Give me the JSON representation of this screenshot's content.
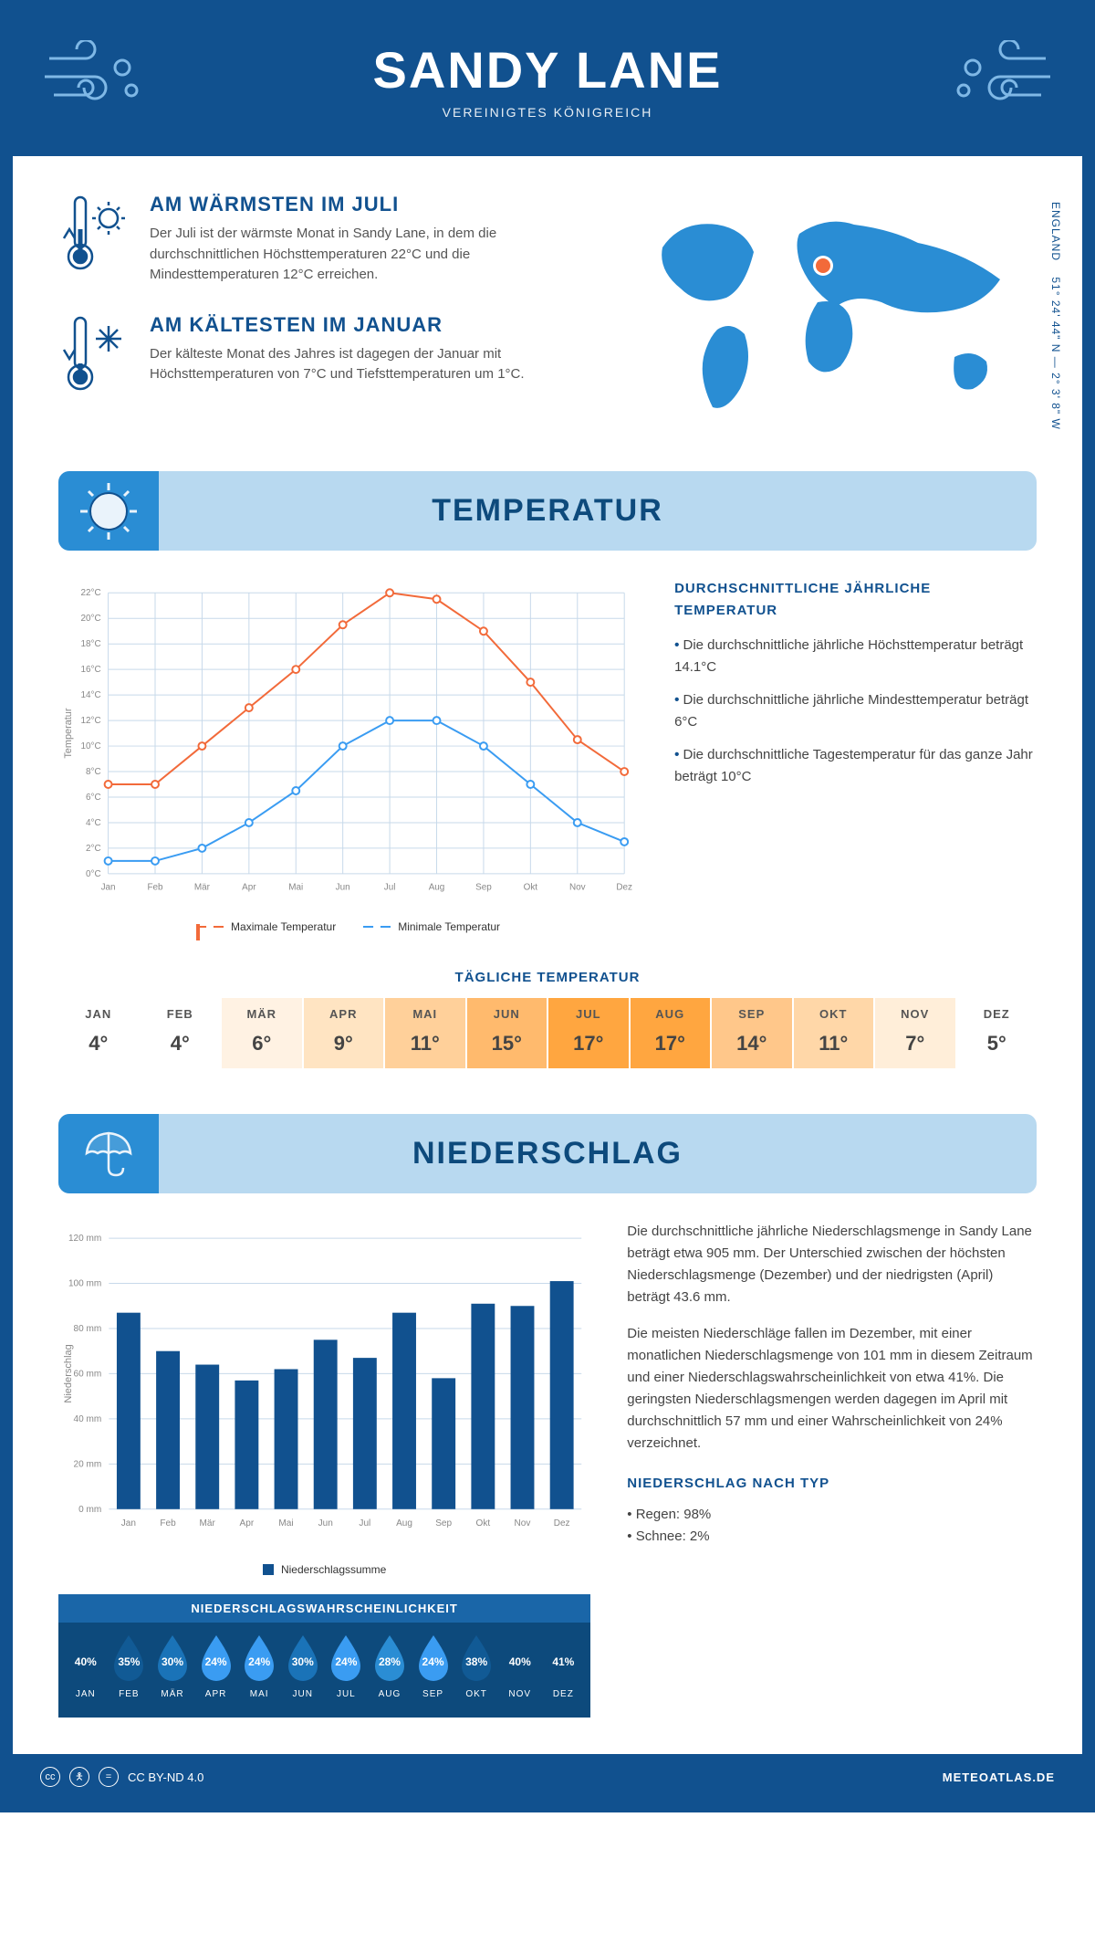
{
  "header": {
    "title": "SANDY LANE",
    "subtitle": "VEREINIGTES KÖNIGREICH"
  },
  "coords": {
    "text": "51° 24' 44\" N — 2° 3' 8\" W",
    "region": "ENGLAND"
  },
  "facts": {
    "warm": {
      "title": "AM WÄRMSTEN IM JULI",
      "body": "Der Juli ist der wärmste Monat in Sandy Lane, in dem die durchschnittlichen Höchsttemperaturen 22°C und die Mindesttemperaturen 12°C erreichen."
    },
    "cold": {
      "title": "AM KÄLTESTEN IM JANUAR",
      "body": "Der kälteste Monat des Jahres ist dagegen der Januar mit Höchsttemperaturen von 7°C und Tiefsttemperaturen um 1°C."
    }
  },
  "sections": {
    "temp": "TEMPERATUR",
    "precip": "NIEDERSCHLAG",
    "daily": "TÄGLICHE TEMPERATUR"
  },
  "temp_side": {
    "title": "DURCHSCHNITTLICHE JÄHRLICHE TEMPERATUR",
    "items": [
      "Die durchschnittliche jährliche Höchsttemperatur beträgt 14.1°C",
      "Die durchschnittliche jährliche Mindesttemperatur beträgt 6°C",
      "Die durchschnittliche Tagestemperatur für das ganze Jahr beträgt 10°C"
    ]
  },
  "temp_chart": {
    "type": "line",
    "months": [
      "Jan",
      "Feb",
      "Mär",
      "Apr",
      "Mai",
      "Jun",
      "Jul",
      "Aug",
      "Sep",
      "Okt",
      "Nov",
      "Dez"
    ],
    "max": [
      7,
      7,
      10,
      13,
      16,
      19.5,
      22,
      21.5,
      19,
      15,
      10.5,
      8
    ],
    "min": [
      1,
      1,
      2,
      4,
      6.5,
      10,
      12,
      12,
      10,
      7,
      4,
      2.5
    ],
    "max_color": "#f26a3a",
    "min_color": "#3a9cf2",
    "grid_color": "#c7d9ea",
    "ylim": [
      0,
      22
    ],
    "ytick_step": 2,
    "ylabel": "Temperatur",
    "legend": {
      "max": "Maximale Temperatur",
      "min": "Minimale Temperatur"
    }
  },
  "daily_temps": {
    "months": [
      "JAN",
      "FEB",
      "MÄR",
      "APR",
      "MAI",
      "JUN",
      "JUL",
      "AUG",
      "SEP",
      "OKT",
      "NOV",
      "DEZ"
    ],
    "values": [
      "4°",
      "4°",
      "6°",
      "9°",
      "11°",
      "15°",
      "17°",
      "17°",
      "14°",
      "11°",
      "7°",
      "5°"
    ],
    "colors": [
      "#ffffff",
      "#ffffff",
      "#fff2e3",
      "#ffe4c2",
      "#ffd09a",
      "#ffba6d",
      "#ffa640",
      "#ffa640",
      "#ffc78a",
      "#ffd7a8",
      "#ffeed9",
      "#ffffff"
    ]
  },
  "precip_chart": {
    "type": "bar",
    "months": [
      "Jan",
      "Feb",
      "Mär",
      "Apr",
      "Mai",
      "Jun",
      "Jul",
      "Aug",
      "Sep",
      "Okt",
      "Nov",
      "Dez"
    ],
    "values": [
      87,
      70,
      64,
      57,
      62,
      75,
      67,
      87,
      58,
      91,
      90,
      101
    ],
    "bar_color": "#11518f",
    "grid_color": "#c7d9ea",
    "ylim": [
      0,
      120
    ],
    "ytick_step": 20,
    "ylabel": "Niederschlag",
    "legend": "Niederschlagssumme"
  },
  "precip_text": {
    "p1": "Die durchschnittliche jährliche Niederschlagsmenge in Sandy Lane beträgt etwa 905 mm. Der Unterschied zwischen der höchsten Niederschlagsmenge (Dezember) und der niedrigsten (April) beträgt 43.6 mm.",
    "p2": "Die meisten Niederschläge fallen im Dezember, mit einer monatlichen Niederschlagsmenge von 101 mm in diesem Zeitraum und einer Niederschlagswahrscheinlichkeit von etwa 41%. Die geringsten Niederschlagsmengen werden dagegen im April mit durchschnittlich 57 mm und einer Wahrscheinlichkeit von 24% verzeichnet.",
    "type_title": "NIEDERSCHLAG NACH TYP",
    "types": [
      "Regen: 98%",
      "Schnee: 2%"
    ]
  },
  "prob": {
    "title": "NIEDERSCHLAGSWAHRSCHEINLICHKEIT",
    "months": [
      "JAN",
      "FEB",
      "MÄR",
      "APR",
      "MAI",
      "JUN",
      "JUL",
      "AUG",
      "SEP",
      "OKT",
      "NOV",
      "DEZ"
    ],
    "values": [
      "40%",
      "35%",
      "30%",
      "24%",
      "24%",
      "30%",
      "24%",
      "28%",
      "24%",
      "38%",
      "40%",
      "41%"
    ],
    "colors": [
      "#0d4a7c",
      "#115a95",
      "#1a73b8",
      "#3a9cf2",
      "#3a9cf2",
      "#1a73b8",
      "#3a9cf2",
      "#2a8dd4",
      "#3a9cf2",
      "#115a95",
      "#0d4a7c",
      "#0d4a7c"
    ]
  },
  "footer": {
    "license": "CC BY-ND 4.0",
    "site": "METEOATLAS.DE"
  }
}
